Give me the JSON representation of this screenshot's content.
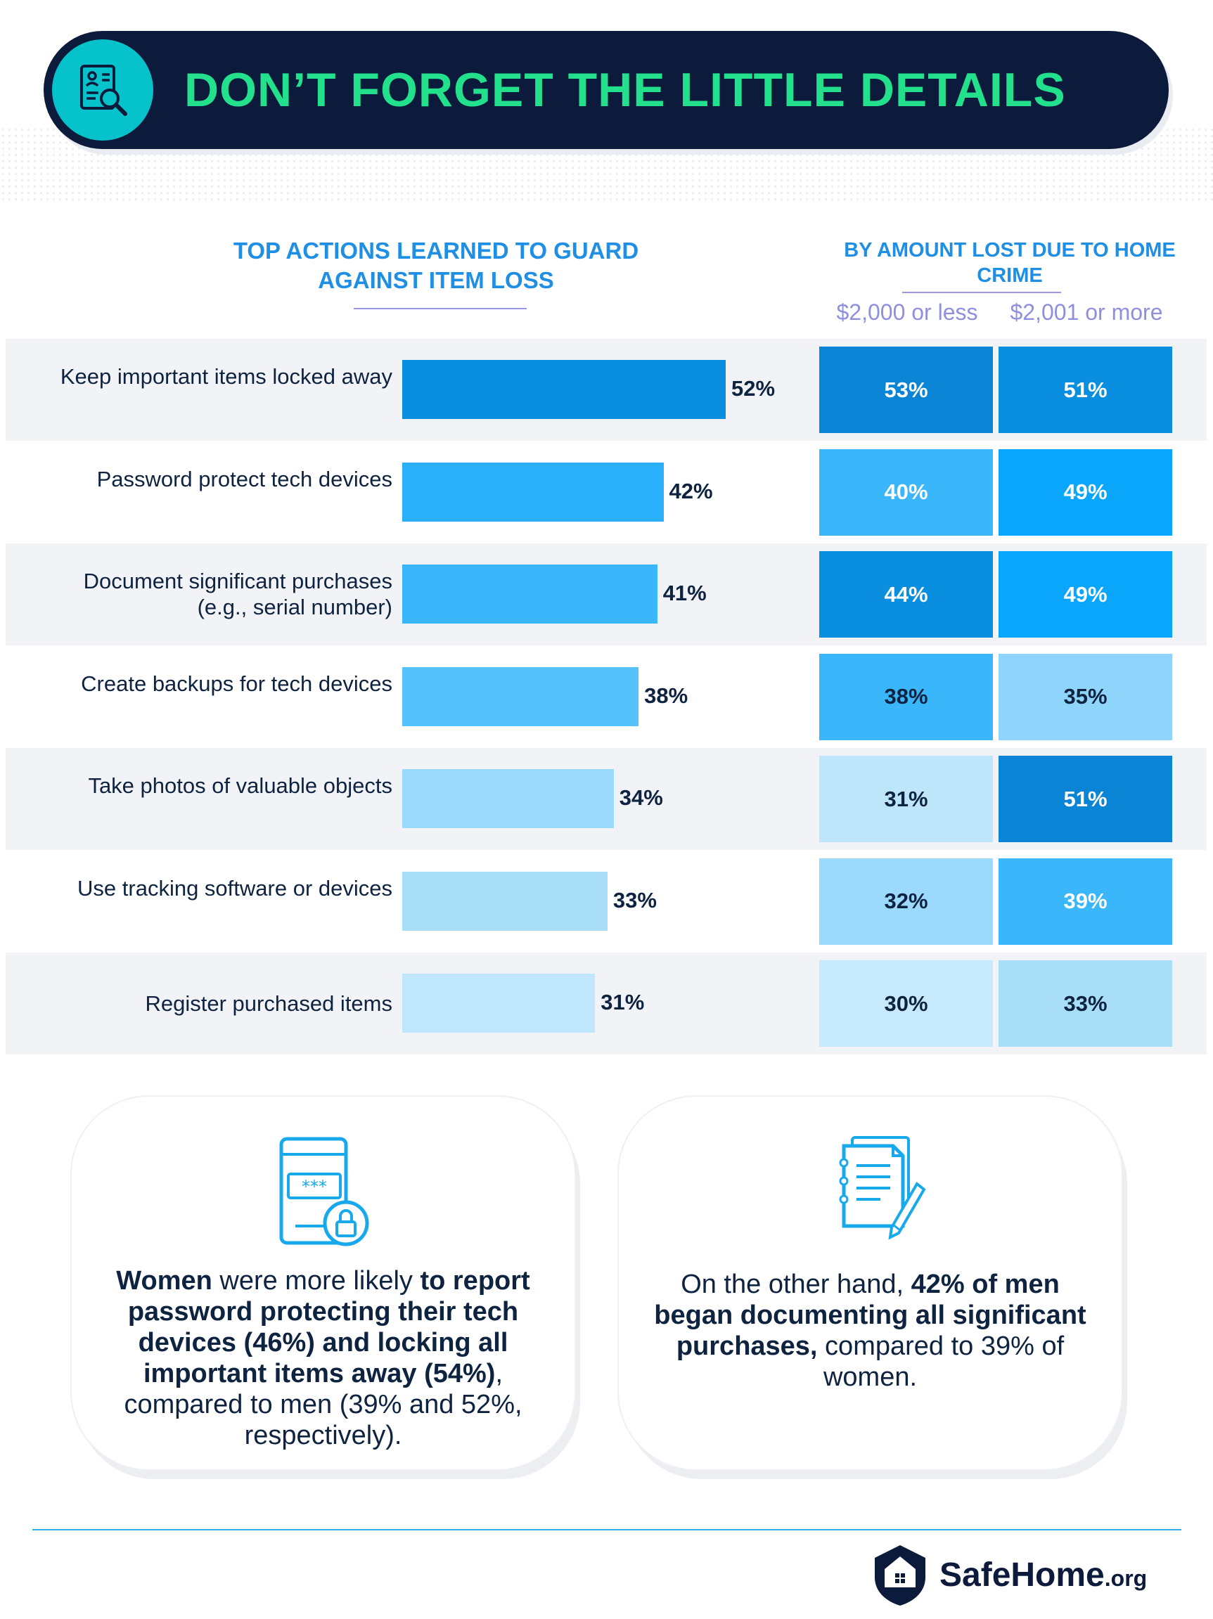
{
  "header": {
    "title": "DON’T FORGET THE LITTLE DETAILS",
    "icon": "document-search-icon"
  },
  "chart_data": {
    "type": "bar",
    "title": "TOP ACTIONS LEARNED TO GUARD AGAINST ITEM LOSS",
    "subtitle": "BY AMOUNT LOST DUE TO HOME CRIME",
    "categories": [
      "Keep important items locked away",
      "Password protect tech devices",
      "Document significant purchases (e.g., serial number)",
      "Create backups for tech devices",
      "Take photos of valuable objects",
      "Use tracking software or devices",
      "Register purchased items"
    ],
    "values": [
      52,
      42,
      41,
      38,
      34,
      33,
      31
    ],
    "value_labels": [
      "52%",
      "42%",
      "41%",
      "38%",
      "34%",
      "33%",
      "31%"
    ],
    "series": [
      {
        "name": "$2,000 or less",
        "values": [
          53,
          40,
          44,
          38,
          31,
          32,
          30
        ],
        "labels": [
          "53%",
          "40%",
          "44%",
          "38%",
          "31%",
          "32%",
          "30%"
        ]
      },
      {
        "name": "$2,001 or more",
        "values": [
          51,
          49,
          49,
          35,
          51,
          39,
          33
        ],
        "labels": [
          "51%",
          "49%",
          "49%",
          "35%",
          "51%",
          "39%",
          "33%"
        ]
      }
    ],
    "colors": {
      "bars": [
        "#0a8fe0",
        "#2ab0fb",
        "#3ab6fb",
        "#55c2fb",
        "#9bdafd",
        "#a9def9",
        "#bfe6fb"
      ],
      "cells_low": [
        "#0a84d4",
        "#3ab6fb",
        "#0a8fe0",
        "#3ab6fb",
        "#bde6fb",
        "#9bdafd",
        "#c6e9fb"
      ],
      "cells_high": [
        "#0a8fe0",
        "#0aa6fb",
        "#0aa6fb",
        "#8fd5fb",
        "#0a84d4",
        "#3ab6fb",
        "#a9def9"
      ]
    }
  },
  "cards": {
    "left": {
      "icon": "phone-lock-icon",
      "b1": "Women",
      "t1": " were more likely ",
      "b2": "to report password protecting their tech devices (46%) and locking all important items away (54%)",
      "t2": ", compared to men (39% and 52%, respectively)."
    },
    "right": {
      "icon": "documents-pen-icon",
      "t1": "On the other hand, ",
      "b1": "42% of men began documenting all significant purchases,",
      "t2": " compared to 39% of women."
    }
  },
  "footer": {
    "logo_main": "SafeHome",
    "logo_suffix": ".org",
    "logo_icon": "house-shield-icon"
  }
}
